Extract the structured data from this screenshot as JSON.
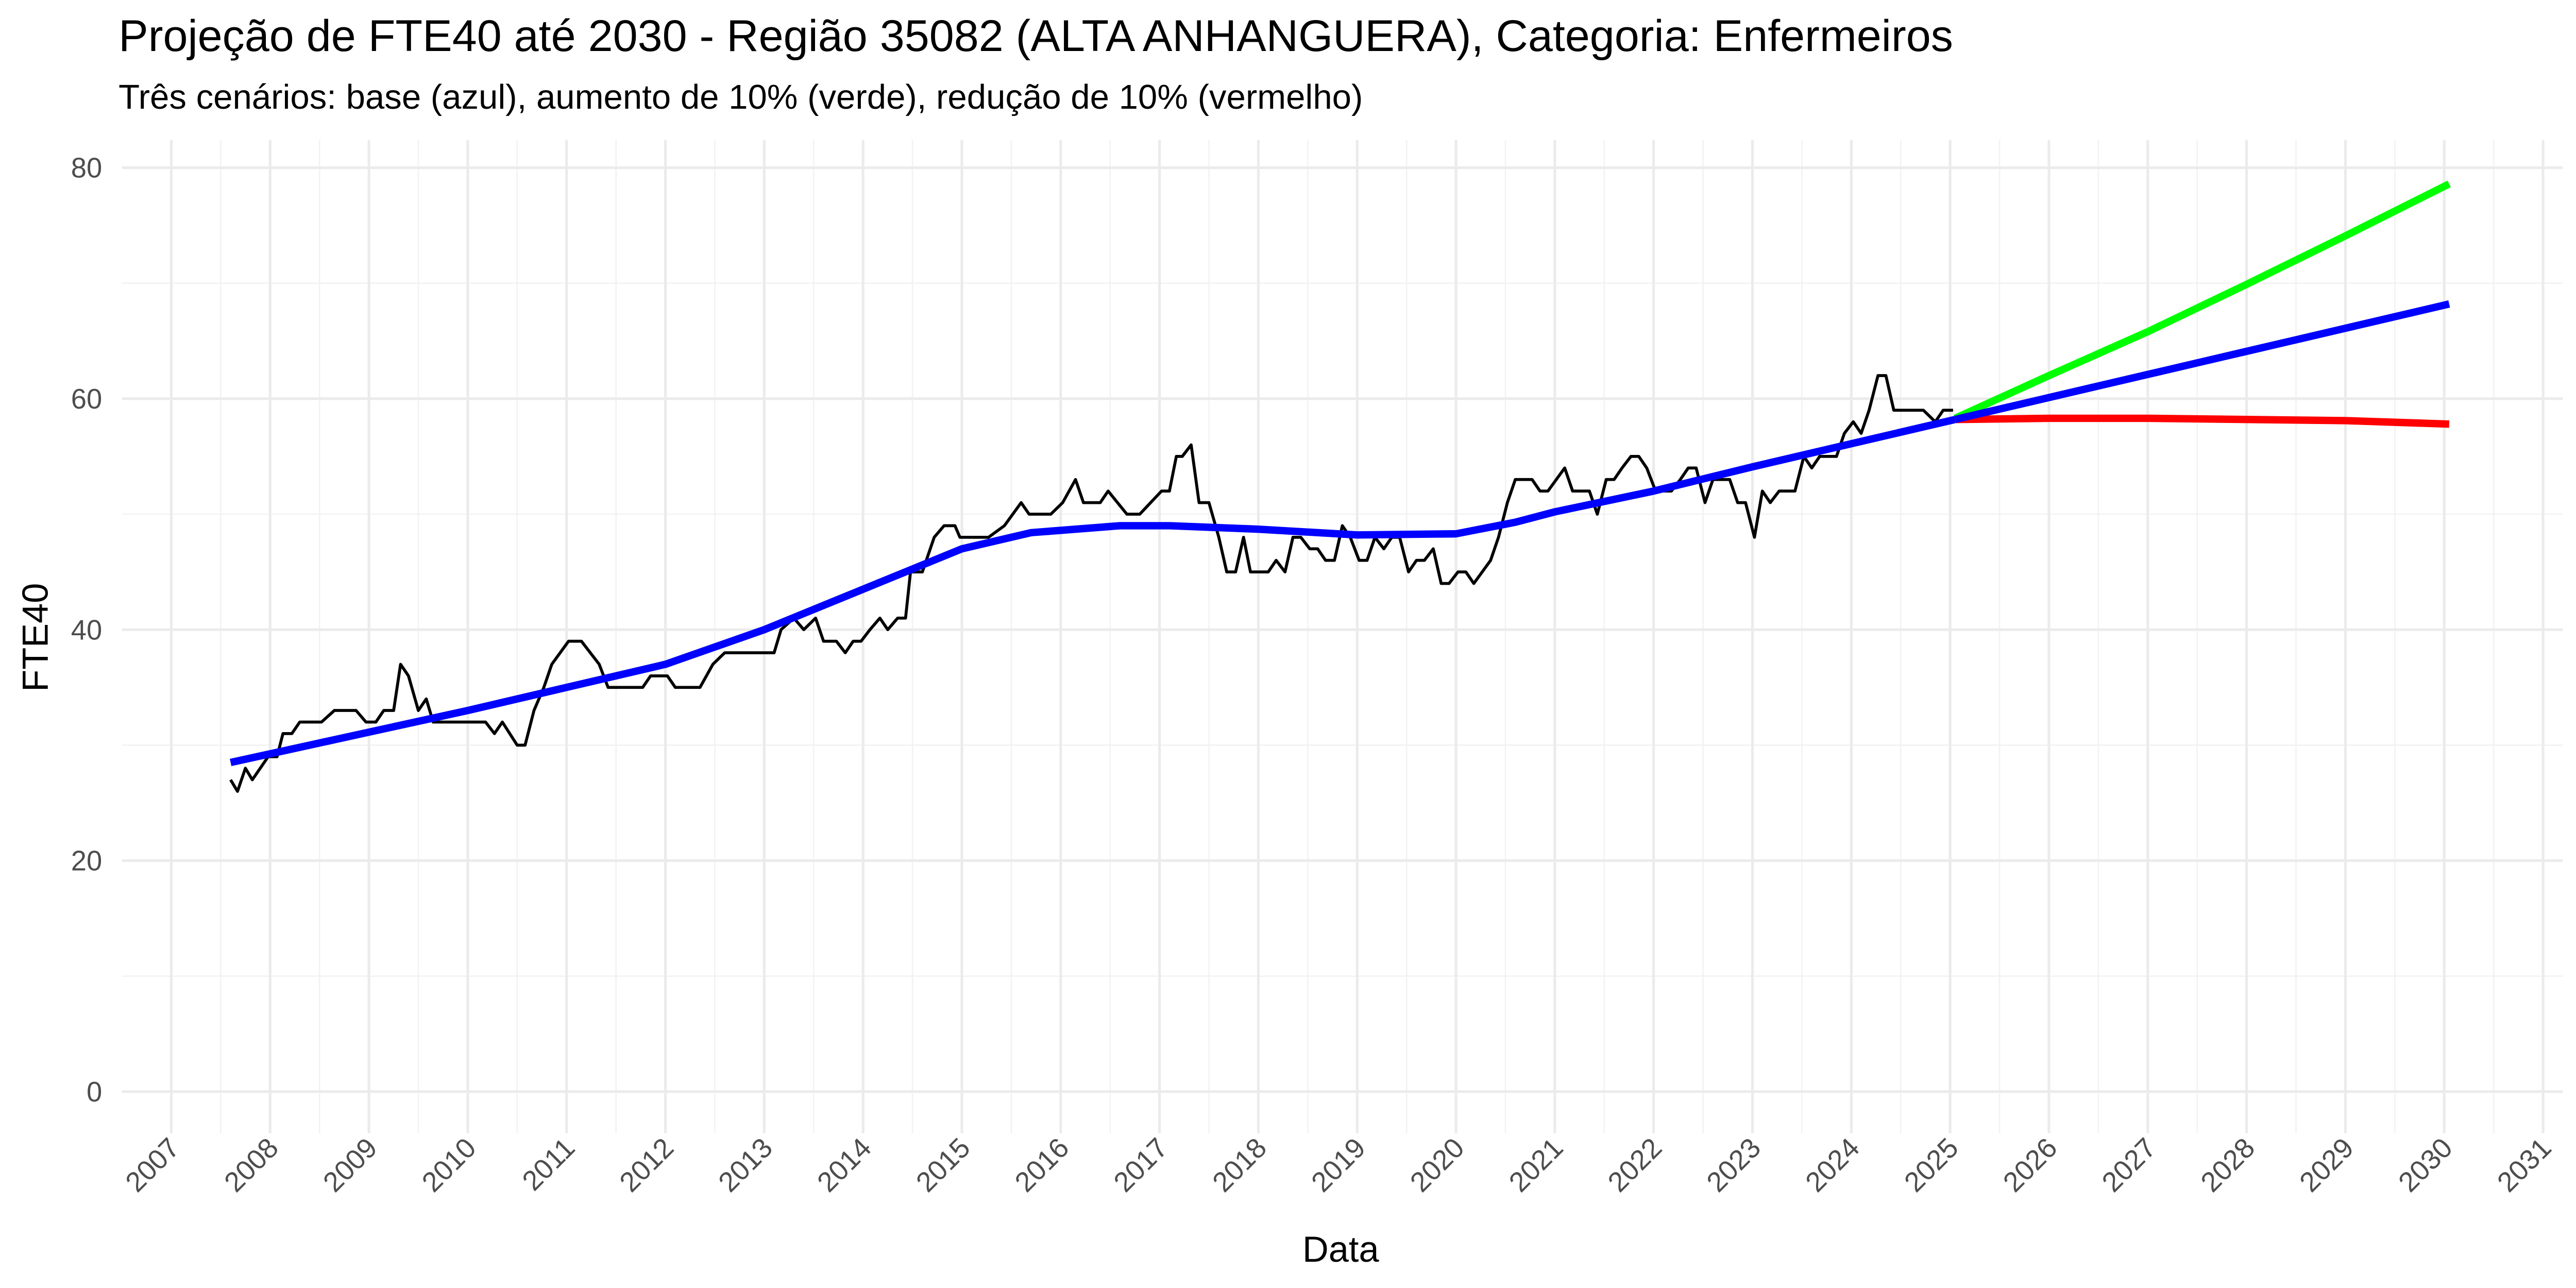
{
  "chart_data": {
    "type": "line",
    "title": "Projeção de FTE40 até 2030 - Região 35082 (ALTA ANHANGUERA), Categoria: Enfermeiros",
    "subtitle": "Três cenários: base (azul), aumento de 10% (verde), redução de 10% (vermelho)",
    "x_label": "Data",
    "y_label": "FTE40",
    "xlim": [
      2006.5,
      2031.2
    ],
    "ylim": [
      -3.6,
      82.4
    ],
    "xticks": [
      2007,
      2008,
      2009,
      2010,
      2011,
      2012,
      2013,
      2014,
      2015,
      2016,
      2017,
      2018,
      2019,
      2020,
      2021,
      2022,
      2023,
      2024,
      2025,
      2026,
      2027,
      2028,
      2029,
      2030,
      2031
    ],
    "yticks": [
      0,
      20,
      40,
      60,
      80
    ],
    "grid": true,
    "series": [
      {
        "color": "#000000",
        "x": [
          2007.6,
          2007.67,
          2007.75,
          2007.82,
          2007.9,
          2007.98,
          2008.07,
          2008.13,
          2008.22,
          2008.3,
          2008.52,
          2008.65,
          2008.87,
          2008.97,
          2009.07,
          2009.15,
          2009.25,
          2009.32,
          2009.4,
          2009.5,
          2009.58,
          2009.65,
          2010.18,
          2010.27,
          2010.35,
          2010.5,
          2010.58,
          2010.67,
          2010.77,
          2010.85,
          2011.02,
          2011.15,
          2011.33,
          2011.42,
          2011.77,
          2011.85,
          2012.02,
          2012.1,
          2012.35,
          2012.48,
          2012.6,
          2013.1,
          2013.17,
          2013.3,
          2013.4,
          2013.52,
          2013.6,
          2013.73,
          2013.82,
          2013.9,
          2013.98,
          2014.07,
          2014.17,
          2014.25,
          2014.35,
          2014.43,
          2014.48,
          2014.6,
          2014.72,
          2014.82,
          2014.93,
          2014.98,
          2015.27,
          2015.43,
          2015.6,
          2015.68,
          2015.9,
          2016.02,
          2016.15,
          2016.23,
          2016.4,
          2016.48,
          2016.67,
          2016.8,
          2017.02,
          2017.1,
          2017.17,
          2017.23,
          2017.32,
          2017.4,
          2017.5,
          2017.6,
          2017.68,
          2017.77,
          2017.85,
          2017.92,
          2018.1,
          2018.18,
          2018.27,
          2018.35,
          2018.43,
          2018.52,
          2018.6,
          2018.68,
          2018.77,
          2018.85,
          2018.93,
          2019.02,
          2019.1,
          2019.18,
          2019.27,
          2019.35,
          2019.43,
          2019.52,
          2019.6,
          2019.68,
          2019.77,
          2019.85,
          2019.93,
          2020.02,
          2020.1,
          2020.18,
          2020.35,
          2020.43,
          2020.52,
          2020.6,
          2020.77,
          2020.85,
          2020.93,
          2021.1,
          2021.18,
          2021.35,
          2021.43,
          2021.52,
          2021.6,
          2021.68,
          2021.77,
          2021.85,
          2021.93,
          2022.02,
          2022.18,
          2022.27,
          2022.35,
          2022.43,
          2022.52,
          2022.6,
          2022.68,
          2022.77,
          2022.85,
          2022.93,
          2023.02,
          2023.1,
          2023.18,
          2023.27,
          2023.43,
          2023.52,
          2023.6,
          2023.68,
          2023.85,
          2023.93,
          2024.02,
          2024.1,
          2024.18,
          2024.27,
          2024.35,
          2024.43,
          2024.73,
          2024.85,
          2024.93,
          2025.03
        ],
        "values": [
          27,
          26,
          28,
          27,
          28,
          29,
          29,
          31,
          31,
          32,
          32,
          33,
          33,
          32,
          32,
          33,
          33,
          37,
          36,
          33,
          34,
          32,
          32,
          31,
          32,
          30,
          30,
          33,
          35,
          37,
          39,
          39,
          37,
          35,
          35,
          36,
          36,
          35,
          35,
          37,
          38,
          38,
          40,
          41,
          40,
          41,
          39,
          39,
          38,
          39,
          39,
          40,
          41,
          40,
          41,
          41,
          45,
          45,
          48,
          49,
          49,
          48,
          48,
          49,
          51,
          50,
          50,
          51,
          53,
          51,
          51,
          52,
          50,
          50,
          52,
          52,
          55,
          55,
          56,
          51,
          51,
          48,
          45,
          45,
          48,
          45,
          45,
          46,
          45,
          48,
          48,
          47,
          47,
          46,
          46,
          49,
          48,
          46,
          46,
          48,
          47,
          48,
          48,
          45,
          46,
          46,
          47,
          44,
          44,
          45,
          45,
          44,
          46,
          48,
          51,
          53,
          53,
          52,
          52,
          54,
          52,
          52,
          50,
          53,
          53,
          54,
          55,
          55,
          54,
          52,
          52,
          53,
          54,
          54,
          51,
          53,
          53,
          53,
          51,
          51,
          48,
          52,
          51,
          52,
          52,
          55,
          54,
          55,
          55,
          57,
          58,
          57,
          59,
          62,
          62,
          59,
          59,
          58,
          59,
          59
        ]
      },
      {
        "color": "#0000ff",
        "x": [
          2007.6,
          2010,
          2012,
          2013,
          2014,
          2015,
          2015.7,
          2016.6,
          2017.1,
          2018,
          2019,
          2020,
          2020.6,
          2021,
          2022,
          2023,
          2024,
          2025.05
        ],
        "values": [
          28.5,
          33,
          37,
          40,
          43.5,
          47,
          48.4,
          49,
          49,
          48.7,
          48.2,
          48.3,
          49.3,
          50.2,
          52,
          54.1,
          56.1,
          58.2
        ]
      },
      {
        "color": "#00ff00",
        "x": [
          2025.05,
          2026,
          2027,
          2028,
          2029,
          2030.05
        ],
        "values": [
          58.3,
          62,
          65.8,
          69.9,
          74.1,
          78.6
        ]
      },
      {
        "color": "#ff0000",
        "x": [
          2025.05,
          2026,
          2027,
          2028,
          2029,
          2030.05
        ],
        "values": [
          58.2,
          58.3,
          58.3,
          58.2,
          58.1,
          57.8
        ]
      },
      {
        "color": "#0000ff",
        "x": [
          2025.05,
          2026,
          2027,
          2028,
          2029,
          2030.05
        ],
        "values": [
          58.2,
          60.1,
          62.1,
          64.1,
          66.1,
          68.2
        ]
      }
    ]
  }
}
